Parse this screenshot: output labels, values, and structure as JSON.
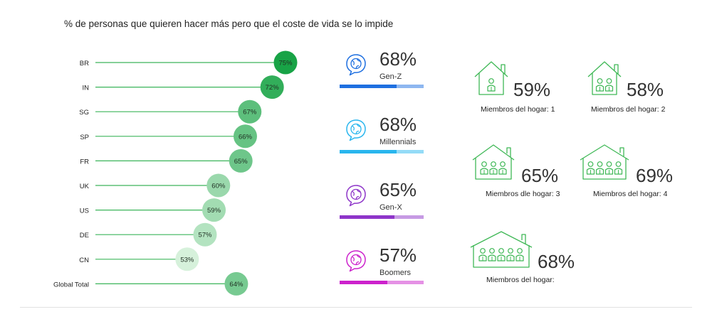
{
  "title": "% de personas que quieren hacer más pero que el coste de vida se lo impide",
  "chart_data": {
    "type": "scatter",
    "title": "% de personas que quieren hacer más pero que el coste de vida se lo impide",
    "categories": [
      "BR",
      "IN",
      "SG",
      "SP",
      "FR",
      "UK",
      "US",
      "DE",
      "CN",
      "Global Total"
    ],
    "values": [
      75,
      72,
      67,
      66,
      65,
      60,
      59,
      57,
      53,
      64
    ],
    "labels": [
      "75%",
      "72%",
      "67%",
      "66%",
      "65%",
      "60%",
      "59%",
      "57%",
      "53%",
      "64%"
    ],
    "grid": false
  },
  "generations": [
    {
      "name": "Gen-Z",
      "value_label": "68%",
      "value": 68,
      "icon": "chat-globe-icon",
      "color": "#1e6fe0",
      "light": "#8eb7f0"
    },
    {
      "name": "Millennials",
      "value_label": "68%",
      "value": 68,
      "icon": "chat-globe-icon",
      "color": "#29b6ee",
      "light": "#94dbf7"
    },
    {
      "name": "Gen-X",
      "value_label": "65%",
      "value": 65,
      "icon": "chat-globe-icon",
      "color": "#8e35c9",
      "light": "#c69ae4"
    },
    {
      "name": "Boomers",
      "value_label": "57%",
      "value": 57,
      "icon": "chat-globe-icon",
      "color": "#cc22cc",
      "light": "#e591e5"
    }
  ],
  "households": [
    {
      "value_label": "59%",
      "label": "Miembros del hogar: 1",
      "icon": "house-1-person-icon"
    },
    {
      "value_label": "58%",
      "label": "Miembros del hogar: 2",
      "icon": "house-2-people-icon"
    },
    {
      "value_label": "65%",
      "label": "Miembros dle hogar: 3",
      "icon": "house-3-people-icon"
    },
    {
      "value_label": "69%",
      "label": "Miembros del hogar: 4",
      "icon": "house-4-people-icon"
    },
    {
      "value_label": "68%",
      "label": "Miembros del hogar:",
      "icon": "house-5-people-icon"
    }
  ],
  "colors": {
    "line": "#3cb55a",
    "house": "#3fb856"
  }
}
